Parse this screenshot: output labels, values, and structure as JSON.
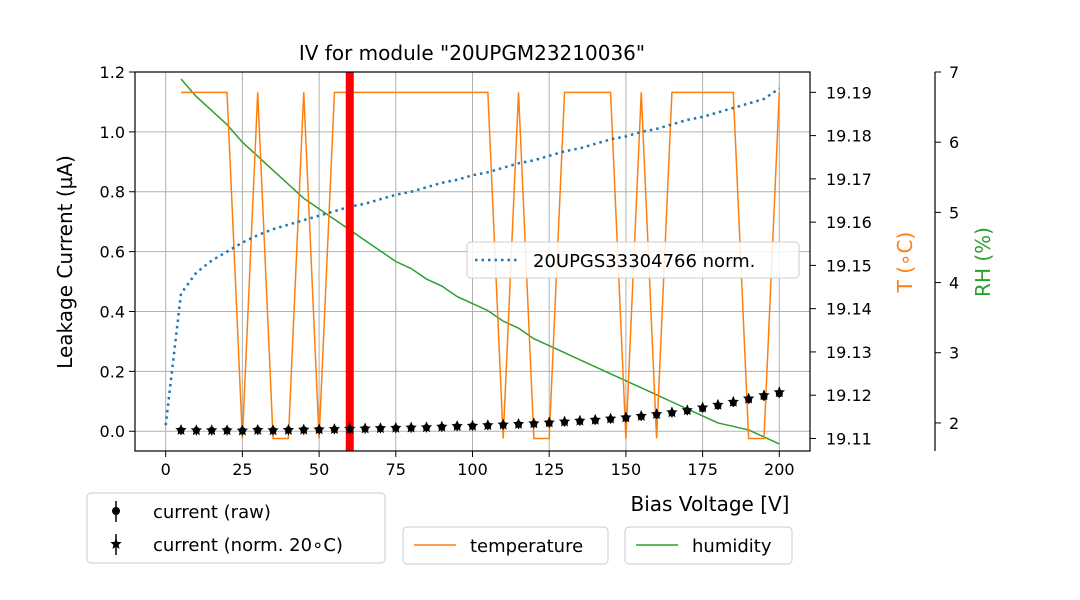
{
  "chart_data": {
    "type": "line",
    "title": "IV for module \"20UPGM23210036\"",
    "xlabel": "Bias Voltage [V]",
    "ylabel": "Leakage Current (µA)",
    "ylabel_temp": "T (∘C)",
    "ylabel_rh": "RH (%)",
    "xlim": [
      -10,
      210
    ],
    "ylim": [
      -0.066,
      1.2
    ],
    "ylim_temp": [
      19.1071,
      19.1947
    ],
    "ylim_rh": [
      1.6,
      7.0
    ],
    "grid": true,
    "x_ticks": [
      0,
      25,
      50,
      75,
      100,
      125,
      150,
      175,
      200
    ],
    "y_ticks": [
      0.0,
      0.2,
      0.4,
      0.6,
      0.8,
      1.0,
      1.2
    ],
    "temp_ticks": [
      19.11,
      19.12,
      19.13,
      19.14,
      19.15,
      19.16,
      19.17,
      19.18,
      19.19
    ],
    "rh_ticks": [
      2,
      3,
      4,
      5,
      6,
      7
    ],
    "marker_line_x": 60,
    "colors": {
      "reference": "#1f77b4",
      "temperature": "#ff7f0e",
      "humidity": "#2ca02c",
      "marker_line": "#ff0000",
      "points": "#000000"
    },
    "voltage": [
      0,
      5,
      10,
      15,
      20,
      25,
      30,
      35,
      40,
      45,
      50,
      55,
      60,
      65,
      70,
      75,
      80,
      85,
      90,
      95,
      100,
      105,
      110,
      115,
      120,
      125,
      130,
      135,
      140,
      145,
      150,
      155,
      160,
      165,
      170,
      175,
      180,
      185,
      190,
      195,
      200
    ],
    "series": [
      {
        "name": "20UPGS33304766 norm.",
        "style": "dotted",
        "x": [
          0,
          5,
          10,
          15,
          20,
          25,
          30,
          35,
          40,
          45,
          50,
          55,
          60,
          65,
          70,
          75,
          80,
          85,
          90,
          95,
          100,
          105,
          110,
          115,
          120,
          125,
          130,
          135,
          140,
          145,
          150,
          155,
          160,
          165,
          170,
          175,
          180,
          185,
          190,
          195,
          200
        ],
        "values": [
          0.02,
          0.46,
          0.53,
          0.57,
          0.6,
          0.63,
          0.655,
          0.675,
          0.69,
          0.705,
          0.72,
          0.735,
          0.75,
          0.76,
          0.775,
          0.79,
          0.8,
          0.815,
          0.83,
          0.84,
          0.855,
          0.865,
          0.88,
          0.895,
          0.905,
          0.92,
          0.935,
          0.945,
          0.96,
          0.975,
          0.985,
          1.0,
          1.01,
          1.025,
          1.04,
          1.05,
          1.065,
          1.08,
          1.095,
          1.11,
          1.145
        ]
      },
      {
        "name": "current (raw)",
        "marker": "circle",
        "x": [
          5,
          10,
          15,
          20,
          25,
          30,
          35,
          40,
          45,
          50,
          55,
          60,
          65,
          70,
          75,
          80,
          85,
          90,
          95,
          100,
          105,
          110,
          115,
          120,
          125,
          130,
          135,
          140,
          145,
          150,
          155,
          160,
          165,
          170,
          175,
          180,
          185,
          190,
          195,
          200
        ],
        "values": [
          0.003,
          0.003,
          0.003,
          0.003,
          0.002,
          0.004,
          0.003,
          0.004,
          0.005,
          0.005,
          0.006,
          0.007,
          0.008,
          0.009,
          0.01,
          0.011,
          0.012,
          0.014,
          0.016,
          0.017,
          0.019,
          0.021,
          0.023,
          0.025,
          0.027,
          0.03,
          0.033,
          0.036,
          0.04,
          0.044,
          0.049,
          0.055,
          0.061,
          0.068,
          0.076,
          0.085,
          0.095,
          0.105,
          0.115,
          0.125
        ]
      },
      {
        "name": "current (norm. 20∘C)",
        "marker": "star",
        "x": [
          5,
          10,
          15,
          20,
          25,
          30,
          35,
          40,
          45,
          50,
          55,
          60,
          65,
          70,
          75,
          80,
          85,
          90,
          95,
          100,
          105,
          110,
          115,
          120,
          125,
          130,
          135,
          140,
          145,
          150,
          155,
          160,
          165,
          170,
          175,
          180,
          185,
          190,
          195,
          200
        ],
        "values": [
          0.004,
          0.003,
          0.003,
          0.003,
          0.002,
          0.004,
          0.003,
          0.004,
          0.005,
          0.006,
          0.007,
          0.008,
          0.009,
          0.01,
          0.011,
          0.012,
          0.013,
          0.015,
          0.017,
          0.018,
          0.02,
          0.022,
          0.024,
          0.026,
          0.029,
          0.032,
          0.035,
          0.038,
          0.042,
          0.046,
          0.051,
          0.057,
          0.063,
          0.07,
          0.079,
          0.088,
          0.098,
          0.109,
          0.12,
          0.13
        ]
      },
      {
        "name": "temperature",
        "axis": "temp",
        "x": [
          5,
          10,
          15,
          20,
          25,
          30,
          35,
          40,
          45,
          50,
          55,
          60,
          65,
          70,
          75,
          80,
          85,
          90,
          95,
          100,
          105,
          110,
          115,
          120,
          125,
          130,
          135,
          140,
          145,
          150,
          155,
          160,
          165,
          170,
          175,
          180,
          185,
          190,
          195,
          200
        ],
        "values": [
          19.19,
          19.19,
          19.19,
          19.19,
          19.11,
          19.19,
          19.11,
          19.11,
          19.19,
          19.11,
          19.19,
          19.19,
          19.19,
          19.19,
          19.19,
          19.19,
          19.19,
          19.19,
          19.19,
          19.19,
          19.19,
          19.11,
          19.19,
          19.11,
          19.11,
          19.19,
          19.19,
          19.19,
          19.19,
          19.11,
          19.19,
          19.11,
          19.19,
          19.19,
          19.19,
          19.19,
          19.19,
          19.11,
          19.11,
          19.19
        ]
      },
      {
        "name": "humidity",
        "axis": "rh",
        "x": [
          5,
          10,
          15,
          20,
          25,
          30,
          35,
          40,
          45,
          50,
          55,
          60,
          65,
          70,
          75,
          80,
          85,
          90,
          95,
          100,
          105,
          110,
          115,
          120,
          125,
          130,
          135,
          140,
          145,
          150,
          155,
          160,
          165,
          170,
          175,
          180,
          185,
          190,
          195,
          200
        ],
        "values": [
          6.9,
          6.65,
          6.45,
          6.25,
          6.0,
          5.8,
          5.6,
          5.4,
          5.2,
          5.05,
          4.9,
          4.75,
          4.6,
          4.45,
          4.3,
          4.2,
          4.05,
          3.95,
          3.8,
          3.7,
          3.6,
          3.45,
          3.35,
          3.2,
          3.1,
          3.0,
          2.9,
          2.8,
          2.7,
          2.6,
          2.5,
          2.4,
          2.3,
          2.2,
          2.1,
          2.0,
          1.95,
          1.9,
          1.8,
          1.7
        ]
      }
    ],
    "legends": {
      "reference": [
        "20UPGS33304766 norm."
      ],
      "current": [
        "current (raw)",
        "current (norm. 20∘C)"
      ],
      "temperature": [
        "temperature"
      ],
      "humidity": [
        "humidity"
      ]
    }
  }
}
